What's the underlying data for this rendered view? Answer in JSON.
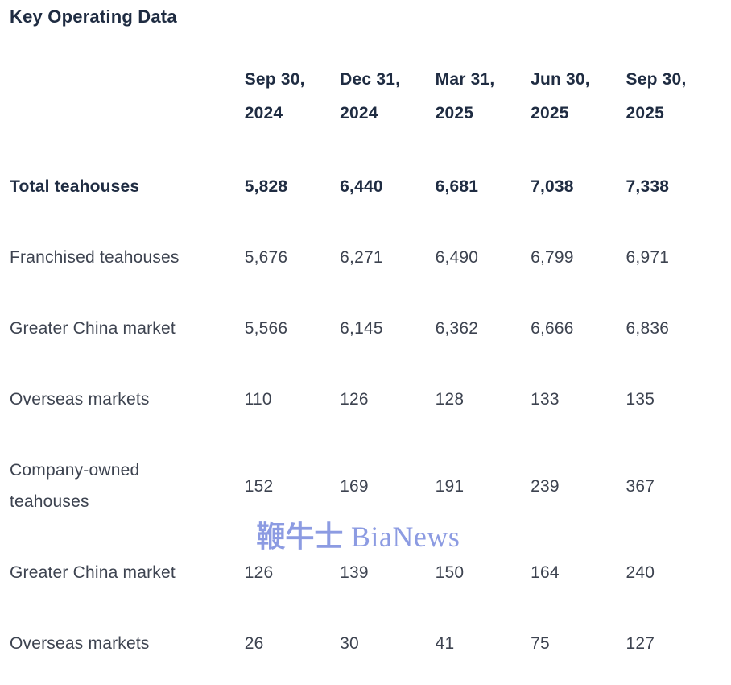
{
  "page": {
    "title": "Key Operating Data"
  },
  "watermark": {
    "cjk": "鞭牛士",
    "latin": " BiaNews",
    "color": "#8c9be2"
  },
  "colors": {
    "title_and_bold_text": "#1f2c42",
    "body_text": "#3d4350",
    "background": "#ffffff"
  },
  "table": {
    "columns": [
      "Sep 30, 2024",
      "Dec 31, 2024",
      "Mar 31, 2025",
      "Jun 30, 2025",
      "Sep 30, 2025"
    ],
    "rows": [
      {
        "label": "Total teahouses",
        "bold": true,
        "values": [
          "5,828",
          "6,440",
          "6,681",
          "7,038",
          "7,338"
        ]
      },
      {
        "label": "Franchised teahouses",
        "bold": false,
        "values": [
          "5,676",
          "6,271",
          "6,490",
          "6,799",
          "6,971"
        ]
      },
      {
        "label": "Greater China market",
        "bold": false,
        "values": [
          "5,566",
          "6,145",
          "6,362",
          "6,666",
          "6,836"
        ]
      },
      {
        "label": "Overseas markets",
        "bold": false,
        "values": [
          "110",
          "126",
          "128",
          "133",
          "135"
        ]
      },
      {
        "label": "Company-owned teahouses",
        "bold": false,
        "values": [
          "152",
          "169",
          "191",
          "239",
          "367"
        ]
      },
      {
        "label": "Greater China market",
        "bold": false,
        "values": [
          "126",
          "139",
          "150",
          "164",
          "240"
        ]
      },
      {
        "label": "Overseas markets",
        "bold": false,
        "values": [
          "26",
          "30",
          "41",
          "75",
          "127"
        ]
      }
    ]
  },
  "chart_data": {
    "type": "table",
    "title": "Key Operating Data",
    "categories": [
      "Sep 30, 2024",
      "Dec 31, 2024",
      "Mar 31, 2025",
      "Jun 30, 2025",
      "Sep 30, 2025"
    ],
    "series": [
      {
        "name": "Total teahouses",
        "values": [
          5828,
          6440,
          6681,
          7038,
          7338
        ]
      },
      {
        "name": "Franchised teahouses",
        "values": [
          5676,
          6271,
          6490,
          6799,
          6971
        ]
      },
      {
        "name": "Greater China market (franchised)",
        "values": [
          5566,
          6145,
          6362,
          6666,
          6836
        ]
      },
      {
        "name": "Overseas markets (franchised)",
        "values": [
          110,
          126,
          128,
          133,
          135
        ]
      },
      {
        "name": "Company-owned teahouses",
        "values": [
          152,
          169,
          191,
          239,
          367
        ]
      },
      {
        "name": "Greater China market (company-owned)",
        "values": [
          126,
          139,
          150,
          164,
          240
        ]
      },
      {
        "name": "Overseas markets (company-owned)",
        "values": [
          26,
          30,
          41,
          75,
          127
        ]
      }
    ]
  }
}
